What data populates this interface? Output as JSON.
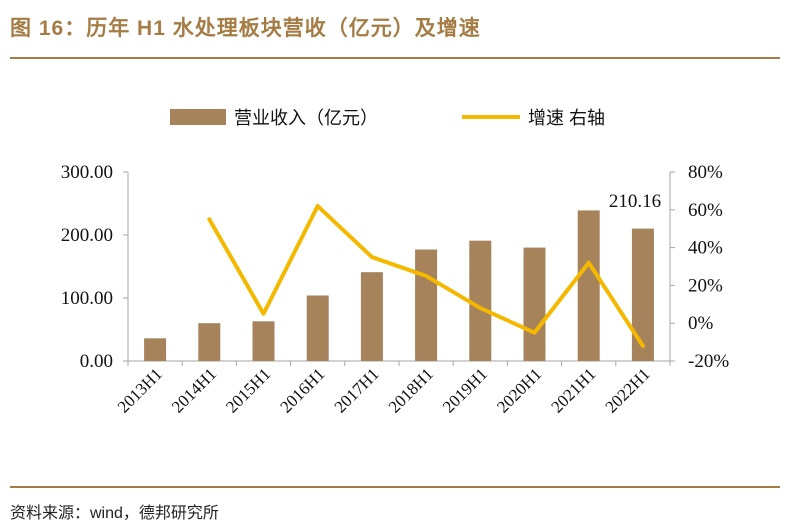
{
  "header": {
    "title": "图 16：历年 H1 水处理板块营收（亿元）及增速"
  },
  "footer": {
    "source": "资料来源：wind，德邦研究所"
  },
  "colors": {
    "bar": "#a6835a",
    "line": "#f5b800",
    "accent": "#a67c45",
    "axis": "#a6a6a6"
  },
  "chart_data": {
    "type": "bar",
    "categories": [
      "2013H1",
      "2014H1",
      "2015H1",
      "2016H1",
      "2017H1",
      "2018H1",
      "2019H1",
      "2020H1",
      "2021H1",
      "2022H1"
    ],
    "series": [
      {
        "name": "营业收入（亿元）",
        "type": "bar",
        "axis": "left",
        "values": [
          36,
          60,
          63,
          104,
          141,
          177,
          191,
          180,
          239,
          210.16
        ]
      },
      {
        "name": "增速 右轴",
        "type": "line",
        "axis": "right",
        "values": [
          null,
          0.55,
          0.05,
          0.62,
          0.35,
          0.25,
          0.08,
          -0.05,
          0.32,
          -0.12
        ]
      }
    ],
    "annotations": [
      {
        "category": "2022H1",
        "text": "210.16"
      }
    ],
    "left_axis": {
      "min": 0,
      "max": 300,
      "ticks": [
        "0.00",
        "100.00",
        "200.00",
        "300.00"
      ],
      "tick_values": [
        0,
        100,
        200,
        300
      ]
    },
    "right_axis": {
      "min": -0.2,
      "max": 0.8,
      "ticks": [
        "-20%",
        "0%",
        "20%",
        "40%",
        "60%",
        "80%"
      ],
      "tick_values": [
        -0.2,
        0,
        0.2,
        0.4,
        0.6,
        0.8
      ]
    },
    "legend_position": "top-center",
    "grid": false
  }
}
